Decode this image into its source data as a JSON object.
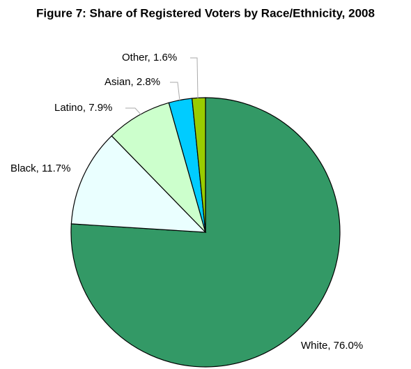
{
  "chart_data": {
    "type": "pie",
    "title": "Figure 7: Share of Registered Voters by Race/Ethnicity, 2008",
    "values": [
      76.0,
      11.7,
      7.9,
      2.8,
      1.6
    ],
    "value_labels": [
      "White, 76.0%",
      "Black, 11.7%",
      "Latino, 7.9%",
      "Asian, 2.8%",
      "Other, 1.6%"
    ],
    "colors": [
      "#339966",
      "#eaffff",
      "#ccffcc",
      "#00ccff",
      "#99cc00"
    ]
  }
}
